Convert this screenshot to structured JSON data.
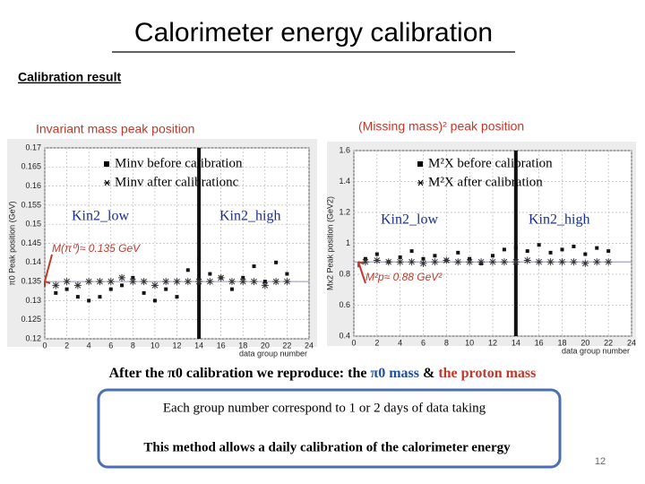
{
  "header": {
    "title": "Calorimeter energy calibration",
    "subtitle": "Calibration result"
  },
  "chart_data": [
    {
      "type": "scatter",
      "title": "Invariant mass peak position",
      "ylabel": "π0 Peak position (GeV)",
      "xlabel": "data group number",
      "xlim": [
        0,
        24
      ],
      "xticks": [
        0,
        2,
        4,
        6,
        8,
        10,
        12,
        14,
        16,
        18,
        20,
        22,
        24
      ],
      "ylim": [
        0.12,
        0.17
      ],
      "yticks": [
        0.12,
        0.125,
        0.13,
        0.135,
        0.14,
        0.145,
        0.15,
        0.155,
        0.16,
        0.165,
        0.17
      ],
      "grid": true,
      "divider_x": 14,
      "annotations": [
        "Kin2_low",
        "Kin2_high"
      ],
      "reference": {
        "value": 0.135,
        "label": "M(π⁰)≈ 0.135 GeV"
      },
      "x": [
        1,
        2,
        3,
        4,
        5,
        6,
        7,
        8,
        9,
        10,
        11,
        12,
        13,
        14,
        15,
        16,
        17,
        18,
        19,
        20,
        21,
        22
      ],
      "series": [
        {
          "name": "Minv before calibration",
          "marker": "square",
          "color": "#111",
          "values": [
            0.132,
            0.133,
            0.131,
            0.13,
            0.131,
            0.133,
            0.134,
            0.136,
            0.132,
            0.13,
            0.133,
            0.131,
            0.138,
            0.141,
            0.137,
            0.136,
            0.133,
            0.136,
            0.139,
            0.135,
            0.14,
            0.137
          ]
        },
        {
          "name": "Minv after calibrationc",
          "marker": "star",
          "color": "#333",
          "values": [
            0.134,
            0.135,
            0.134,
            0.135,
            0.135,
            0.135,
            0.136,
            0.135,
            0.135,
            0.134,
            0.135,
            0.135,
            0.135,
            0.135,
            0.135,
            0.136,
            0.135,
            0.135,
            0.135,
            0.134,
            0.135,
            0.135
          ]
        }
      ]
    },
    {
      "type": "scatter",
      "title": "(Missing mass)² peak position",
      "ylabel": "Mx2 Peak position (GeV2)",
      "xlabel": "data group number",
      "xlim": [
        0,
        24
      ],
      "xticks": [
        0,
        2,
        4,
        6,
        8,
        10,
        12,
        14,
        16,
        18,
        20,
        22,
        24
      ],
      "ylim": [
        0.4,
        1.6
      ],
      "yticks": [
        0.4,
        0.6,
        0.8,
        1,
        1.2,
        1.4,
        1.6
      ],
      "grid": true,
      "divider_x": 14,
      "annotations": [
        "Kin2_low",
        "Kin2_high"
      ],
      "reference": {
        "value": 0.88,
        "label": "M²p≈ 0.88 GeV²"
      },
      "x": [
        1,
        2,
        3,
        4,
        5,
        6,
        7,
        8,
        9,
        10,
        11,
        12,
        13,
        14,
        15,
        16,
        17,
        18,
        19,
        20,
        21,
        22
      ],
      "series": [
        {
          "name": "M²X before calibration",
          "marker": "square",
          "color": "#111",
          "values": [
            0.9,
            0.93,
            0.88,
            0.91,
            0.95,
            0.9,
            0.92,
            0.89,
            0.94,
            0.9,
            0.87,
            0.92,
            0.96,
            0.97,
            0.95,
            0.99,
            0.94,
            0.96,
            0.98,
            0.93,
            0.97,
            0.95
          ]
        },
        {
          "name": "M²X after calibration",
          "marker": "star",
          "color": "#333",
          "values": [
            0.88,
            0.89,
            0.88,
            0.88,
            0.88,
            0.87,
            0.88,
            0.89,
            0.88,
            0.88,
            0.88,
            0.88,
            0.88,
            0.88,
            0.89,
            0.88,
            0.88,
            0.88,
            0.88,
            0.87,
            0.88,
            0.88
          ]
        }
      ]
    }
  ],
  "conclusion": [
    "After the π0 calibration we reproduce: the ",
    "π0 mass",
    " & ",
    "the proton mass"
  ],
  "box": {
    "line1": "Each group number correspond to 1 or 2 days of data taking",
    "line2": "This method allows a daily calibration of the calorimeter energy"
  },
  "page_number": "12"
}
